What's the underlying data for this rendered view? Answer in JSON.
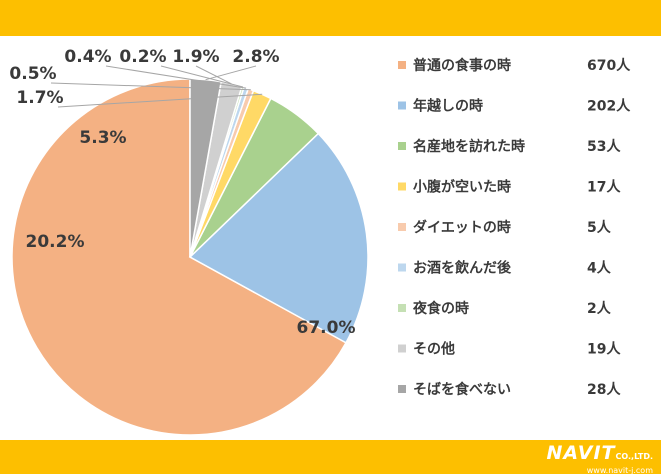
{
  "chart_data": {
    "type": "pie",
    "title": "",
    "categories": [
      "普通の食事の時",
      "年越しの時",
      "名産地を訪れた時",
      "小腹が空いた時",
      "ダイエットの時",
      "お酒を飲んだ後",
      "夜食の時",
      "その他",
      "そばを食べない"
    ],
    "values": [
      670,
      202,
      53,
      17,
      5,
      4,
      2,
      19,
      28
    ],
    "percent_labels": [
      "67.0%",
      "20.2%",
      "5.3%",
      "1.7%",
      "0.5%",
      "0.4%",
      "0.2%",
      "1.9%",
      "2.8%"
    ],
    "count_labels": [
      "670人",
      "202人",
      "53人",
      "17人",
      "5人",
      "4人",
      "2人",
      "19人",
      "28人"
    ],
    "colors": [
      "#f4b183",
      "#9dc3e6",
      "#a9d18e",
      "#ffd966",
      "#f8cbad",
      "#bdd7ee",
      "#c5e0b4",
      "#d0d0d0",
      "#a6a6a6"
    ],
    "legend_position": "right",
    "start_angle_deg": 0,
    "direction": "counterclockwise"
  },
  "brand": {
    "logo_text": "NAVIT",
    "logo_suffix": "CO.,LTD.",
    "url": "www.navit-j.com",
    "band_color": "#fdbf00"
  }
}
